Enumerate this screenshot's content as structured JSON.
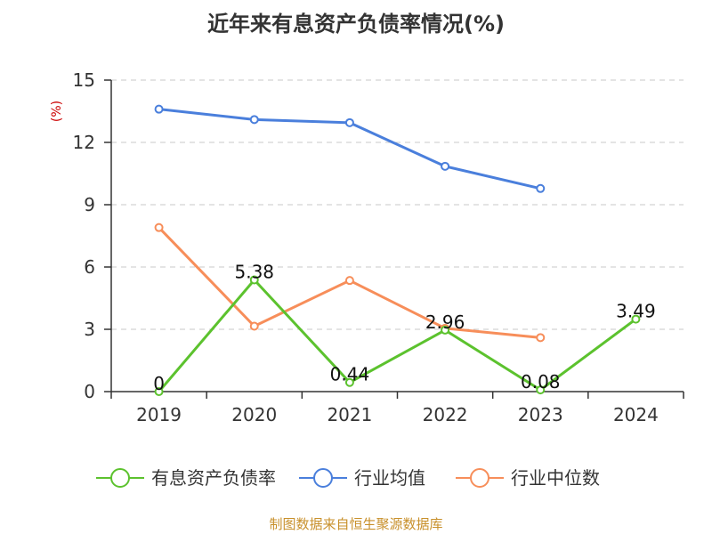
{
  "chart_data": {
    "type": "line",
    "title": "近年来有息资产负债率情况(%)",
    "ylabel": "(%)",
    "categories": [
      "2019",
      "2020",
      "2021",
      "2022",
      "2023",
      "2024"
    ],
    "y_ticks": [
      "0",
      "3",
      "6",
      "9",
      "12",
      "15"
    ],
    "ylim": [
      0,
      15
    ],
    "grid": true,
    "legend_position": "bottom",
    "series": [
      {
        "name": "有息资产负债率",
        "color": "#5cc22e",
        "values": [
          0,
          5.38,
          0.44,
          2.96,
          0.08,
          3.49
        ],
        "labels": [
          "0",
          "5.38",
          "0.44",
          "2.96",
          "0.08",
          "3.49"
        ]
      },
      {
        "name": "行业均值",
        "color": "#4a7fdc",
        "values": [
          13.6,
          13.1,
          12.95,
          10.85,
          9.78,
          null
        ]
      },
      {
        "name": "行业中位数",
        "color": "#f78e5a",
        "values": [
          7.9,
          3.15,
          5.35,
          3.05,
          2.6,
          null
        ]
      }
    ]
  },
  "source": "制图数据来自恒生聚源数据库"
}
